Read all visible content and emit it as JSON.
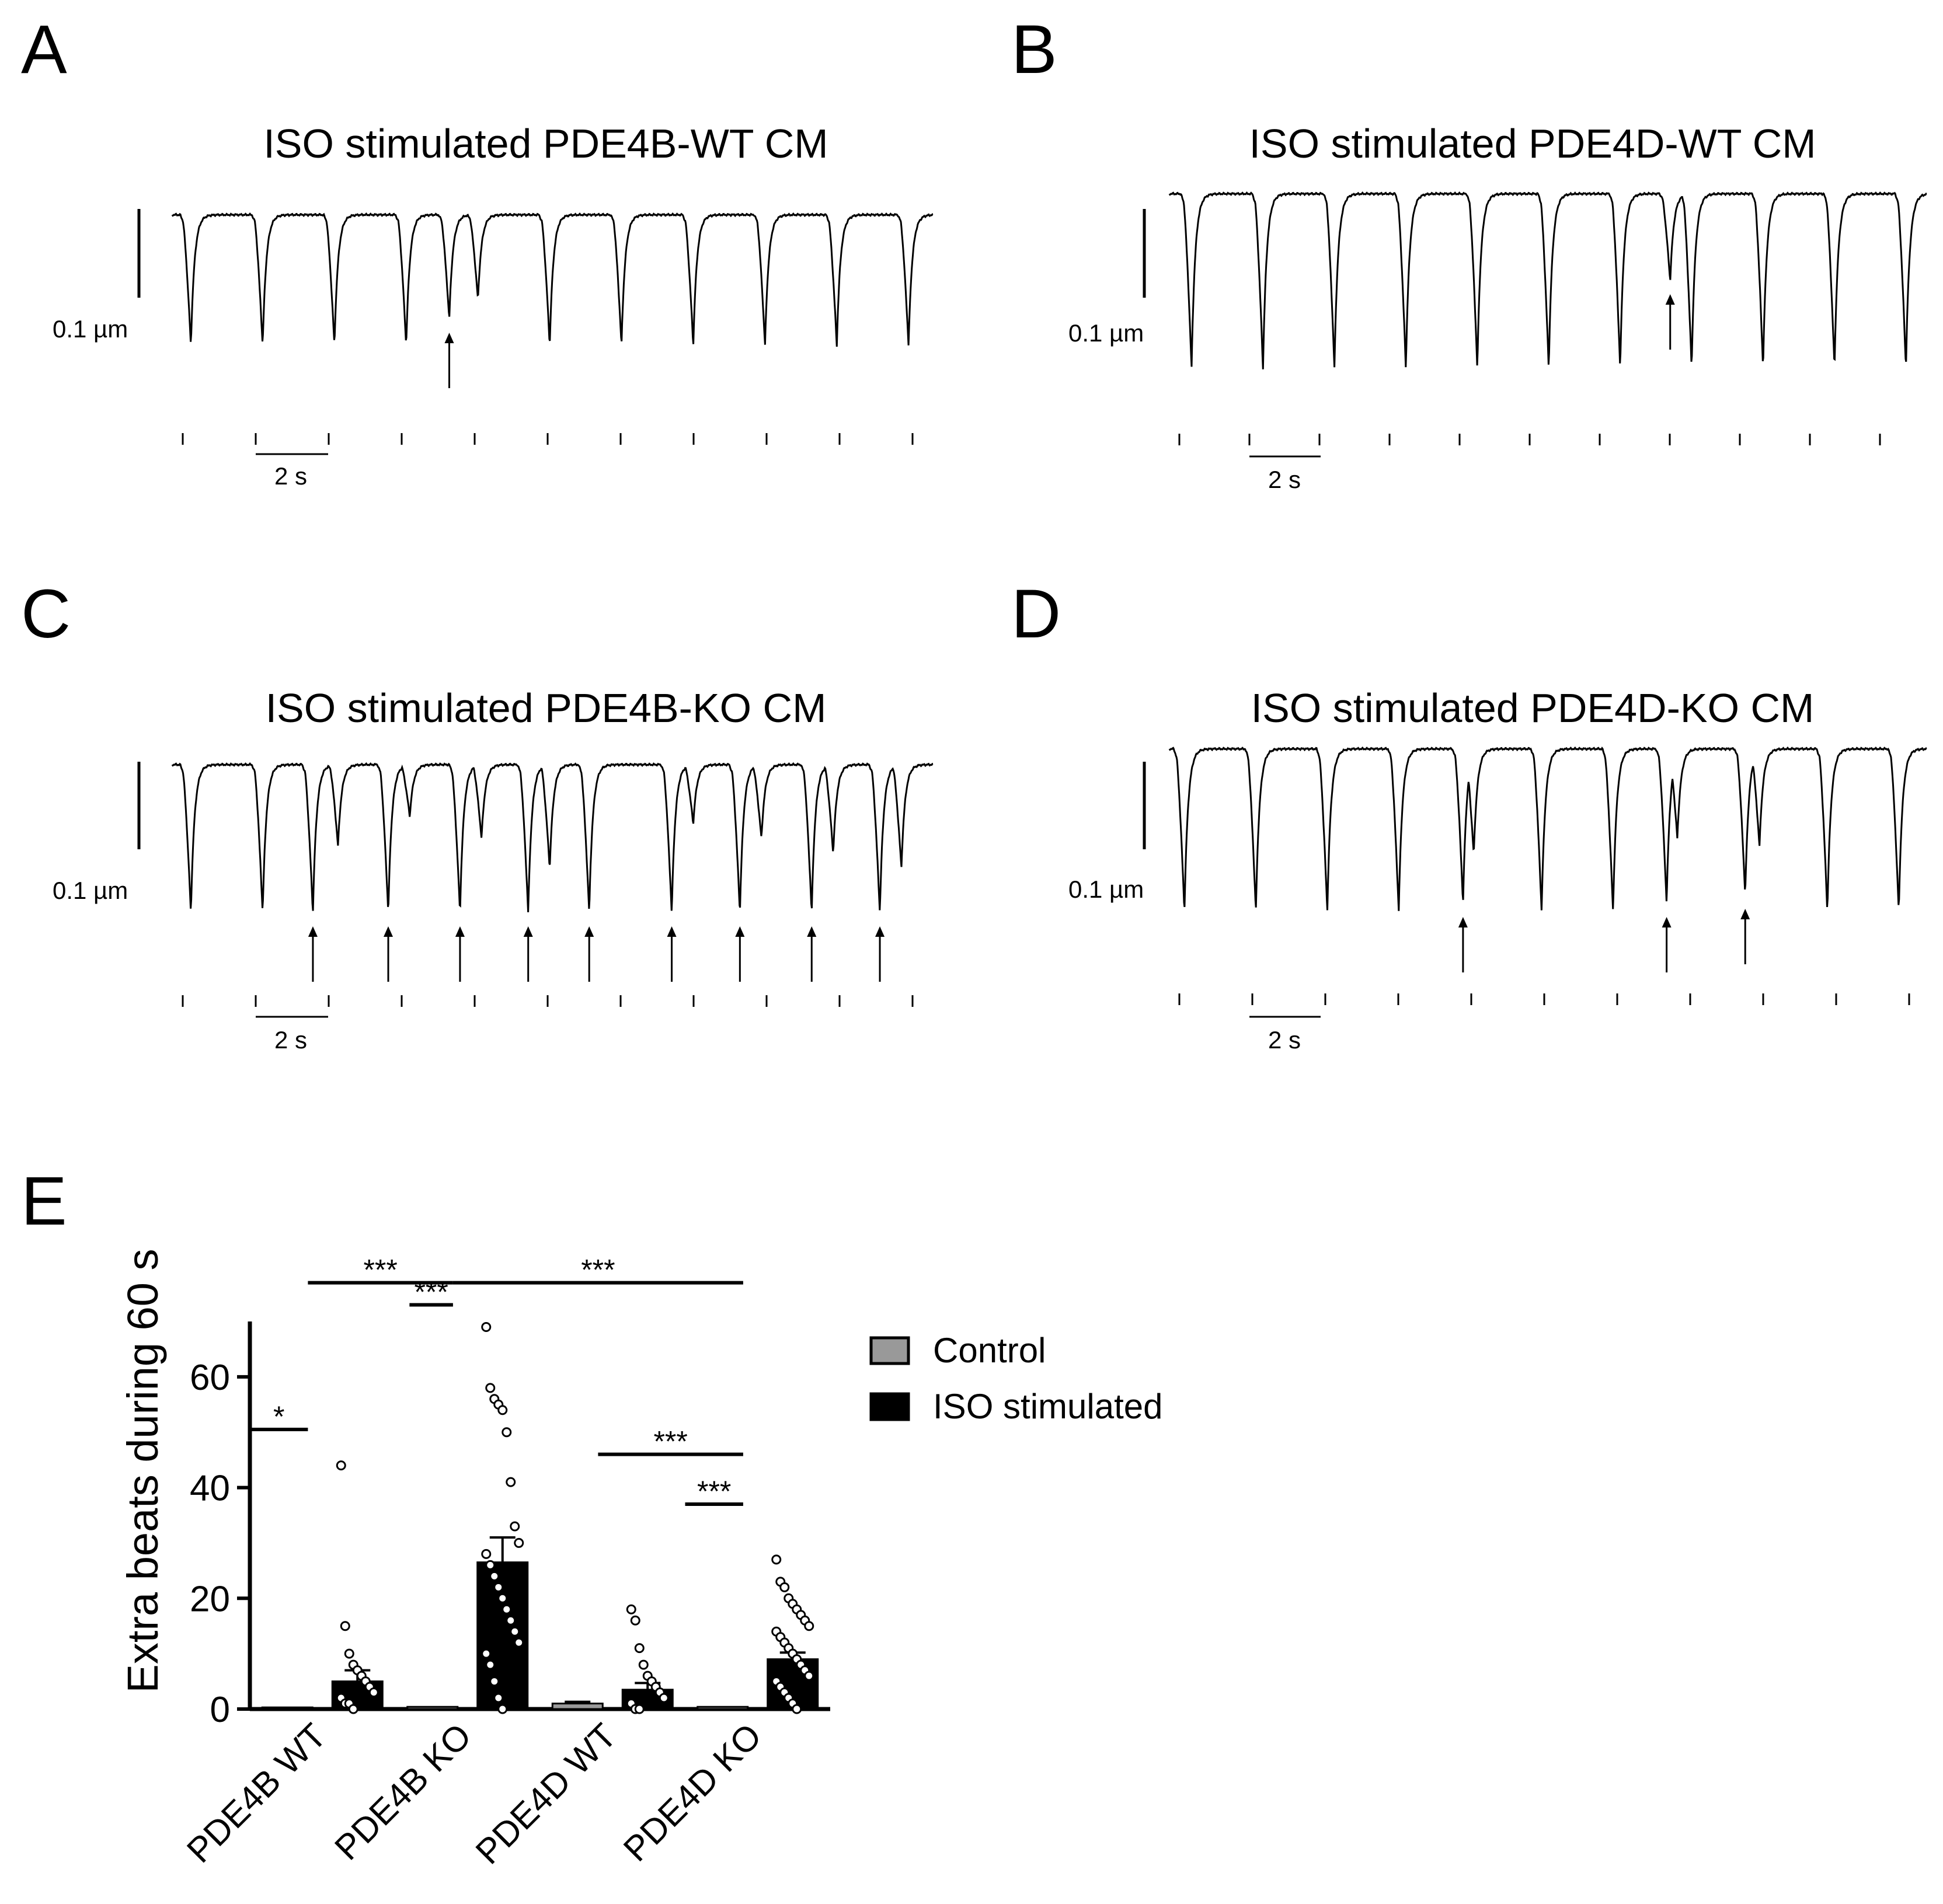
{
  "panels": [
    {
      "letter": "A",
      "title": "ISO stimulated PDE4B-WT CM",
      "scale_amplitude": "0.1 µm",
      "scale_time": "2 s",
      "beats": [
        {
          "t": 0.15,
          "depth": 1.0
        },
        {
          "t": 1.15,
          "depth": 1.0
        },
        {
          "t": 2.15,
          "depth": 1.0
        },
        {
          "t": 3.15,
          "depth": 1.0
        },
        {
          "t": 3.75,
          "depth": 0.8,
          "arrow": true
        },
        {
          "t": 4.15,
          "depth": 0.65
        },
        {
          "t": 5.15,
          "depth": 1.0
        },
        {
          "t": 6.15,
          "depth": 1.0
        },
        {
          "t": 7.15,
          "depth": 1.0
        },
        {
          "t": 8.15,
          "depth": 1.0
        },
        {
          "t": 9.15,
          "depth": 1.0
        },
        {
          "t": 10.15,
          "depth": 1.0
        }
      ]
    },
    {
      "letter": "B",
      "title": "ISO stimulated PDE4D-WT CM",
      "scale_amplitude": "0.1 µm",
      "scale_time": "2 s",
      "beats": [
        {
          "t": 0.2,
          "depth": 1.0
        },
        {
          "t": 1.2,
          "depth": 1.0
        },
        {
          "t": 2.2,
          "depth": 1.0
        },
        {
          "t": 3.2,
          "depth": 1.0
        },
        {
          "t": 4.2,
          "depth": 1.0
        },
        {
          "t": 5.2,
          "depth": 1.0
        },
        {
          "t": 6.2,
          "depth": 1.0
        },
        {
          "t": 6.9,
          "depth": 0.5,
          "arrow": true
        },
        {
          "t": 7.2,
          "depth": 1.0
        },
        {
          "t": 8.2,
          "depth": 1.0
        },
        {
          "t": 9.2,
          "depth": 1.0
        },
        {
          "t": 10.2,
          "depth": 1.0
        }
      ]
    },
    {
      "letter": "C",
      "title": "ISO stimulated PDE4B-KO CM",
      "scale_amplitude": "0.1 µm",
      "scale_time": "2 s",
      "beats": [
        {
          "t": 0.15,
          "depth": 1.0
        },
        {
          "t": 1.15,
          "depth": 1.0
        },
        {
          "t": 1.85,
          "depth": 1.0,
          "arrow": true
        },
        {
          "t": 2.2,
          "depth": 0.55
        },
        {
          "t": 2.9,
          "depth": 1.0,
          "arrow": true
        },
        {
          "t": 3.2,
          "depth": 0.35
        },
        {
          "t": 3.9,
          "depth": 1.0,
          "arrow": true
        },
        {
          "t": 4.2,
          "depth": 0.5
        },
        {
          "t": 4.85,
          "depth": 1.0,
          "arrow": true
        },
        {
          "t": 5.15,
          "depth": 0.7
        },
        {
          "t": 5.7,
          "depth": 1.0,
          "arrow": true
        },
        {
          "t": 6.85,
          "depth": 1.0,
          "arrow": true
        },
        {
          "t": 7.15,
          "depth": 0.4
        },
        {
          "t": 7.8,
          "depth": 1.0,
          "arrow": true
        },
        {
          "t": 8.1,
          "depth": 0.5
        },
        {
          "t": 8.8,
          "depth": 1.0,
          "arrow": true
        },
        {
          "t": 9.1,
          "depth": 0.6
        },
        {
          "t": 9.75,
          "depth": 1.0,
          "arrow": true
        },
        {
          "t": 10.05,
          "depth": 0.7
        }
      ]
    },
    {
      "letter": "D",
      "title": "ISO stimulated PDE4D-KO CM",
      "scale_amplitude": "0.1 µm",
      "scale_time": "2 s",
      "beats": [
        {
          "t": 0.1,
          "depth": 1.0
        },
        {
          "t": 1.1,
          "depth": 1.0
        },
        {
          "t": 2.1,
          "depth": 1.0
        },
        {
          "t": 3.1,
          "depth": 1.0
        },
        {
          "t": 4.0,
          "depth": 0.95,
          "arrow": true
        },
        {
          "t": 4.15,
          "depth": 0.65
        },
        {
          "t": 5.1,
          "depth": 1.0
        },
        {
          "t": 6.1,
          "depth": 1.0
        },
        {
          "t": 6.85,
          "depth": 0.95,
          "arrow": true
        },
        {
          "t": 7.0,
          "depth": 0.55
        },
        {
          "t": 7.95,
          "depth": 0.9,
          "arrow": true
        },
        {
          "t": 8.15,
          "depth": 0.6
        },
        {
          "t": 9.1,
          "depth": 1.0
        },
        {
          "t": 10.1,
          "depth": 1.0
        }
      ]
    }
  ],
  "chart_data": {
    "type": "bar",
    "panel_letter": "E",
    "ylabel": "Extra  beats during 60 s",
    "ylim": [
      0,
      70
    ],
    "yticks": [
      0,
      20,
      40,
      60
    ],
    "categories": [
      "PDE4B WT",
      "PDE4B KO",
      "PDE4D WT",
      "PDE4D KO"
    ],
    "series": [
      {
        "name": "Control",
        "color": "#999999",
        "values": [
          0.3,
          0.4,
          1.0,
          0.4
        ],
        "errors": [
          0,
          0,
          0.3,
          0
        ]
      },
      {
        "name": "ISO stimulated",
        "color": "#000000",
        "values": [
          5,
          26.5,
          3.5,
          9
        ],
        "errors": [
          2,
          4.5,
          1.2,
          1.2
        ]
      }
    ],
    "points": [
      [
        44,
        15,
        10,
        8,
        7,
        6,
        5,
        4,
        3,
        2,
        1,
        1,
        0
      ],
      [
        69,
        58,
        56,
        55,
        54,
        50,
        41,
        33,
        30,
        28,
        26,
        24,
        22,
        20,
        18,
        16,
        14,
        12,
        10,
        8,
        5,
        2,
        0
      ],
      [
        18,
        16,
        11,
        8,
        6,
        5,
        4,
        3,
        2,
        1,
        0,
        0
      ],
      [
        27,
        23,
        22,
        20,
        19,
        18,
        17,
        16,
        15,
        14,
        13,
        12,
        11,
        10,
        9,
        8,
        7,
        6,
        5,
        4,
        3,
        2,
        1,
        0
      ]
    ],
    "significance": [
      {
        "label": "*",
        "x1": 0.0,
        "x2": 0.4,
        "y": 50.5
      },
      {
        "label": "***",
        "x1": 0.4,
        "x2": 1.4,
        "y": 77
      },
      {
        "label": "***",
        "x1": 1.1,
        "x2": 1.4,
        "y": 73
      },
      {
        "label": "***",
        "x1": 1.4,
        "x2": 3.4,
        "y": 77
      },
      {
        "label": "***",
        "x1": 2.4,
        "x2": 3.4,
        "y": 46
      },
      {
        "label": "***",
        "x1": 3.0,
        "x2": 3.4,
        "y": 37
      }
    ],
    "legend_position": "right"
  }
}
